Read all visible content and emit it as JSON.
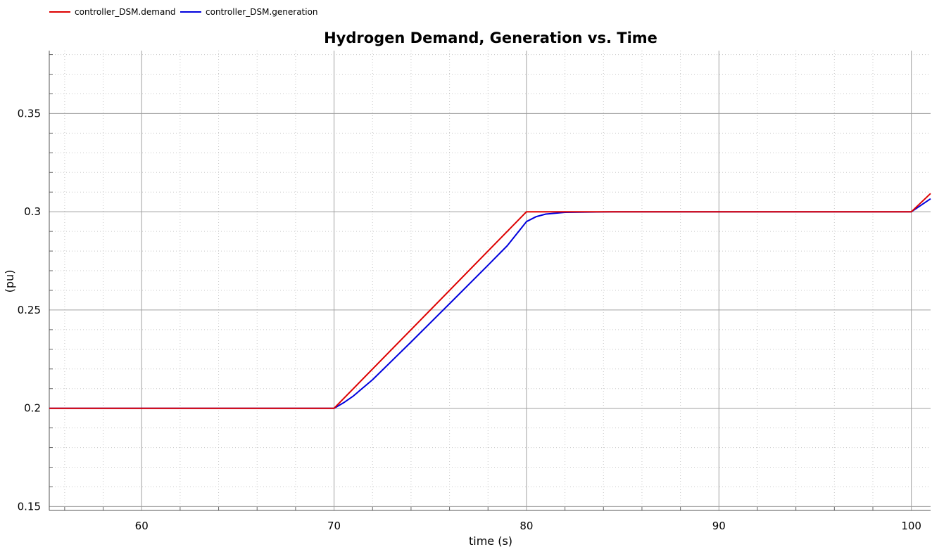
{
  "chart_data": {
    "type": "line",
    "title": "Hydrogen Demand, Generation vs. Time",
    "xlabel": "time (s)",
    "ylabel": "(pu)",
    "xlim": [
      55.2,
      101
    ],
    "ylim": [
      0.148,
      0.382
    ],
    "x_ticks": [
      60,
      70,
      80,
      90,
      100
    ],
    "x_tick_labels": [
      "60",
      "70",
      "80",
      "90",
      "100"
    ],
    "y_ticks": [
      0.15,
      0.2,
      0.25,
      0.3,
      0.35
    ],
    "y_tick_labels": [
      "0.15",
      "0.2",
      "0.25",
      "0.3",
      "0.35"
    ],
    "grid": true,
    "legend_position": "top-left",
    "series": [
      {
        "name": "controller_DSM.demand",
        "color": "#dd0000",
        "x": [
          55.2,
          70,
          80,
          100,
          101
        ],
        "y": [
          0.2,
          0.2,
          0.3,
          0.3,
          0.3093
        ]
      },
      {
        "name": "controller_DSM.generation",
        "color": "#0000dd",
        "x": [
          55.2,
          70,
          70.5,
          71,
          72,
          74,
          76,
          78,
          79,
          80,
          80.5,
          81,
          82,
          84.5,
          100,
          101
        ],
        "y": [
          0.2,
          0.2,
          0.2028,
          0.2062,
          0.2145,
          0.2337,
          0.2532,
          0.2728,
          0.2827,
          0.295,
          0.2975,
          0.2988,
          0.2997,
          0.3,
          0.3,
          0.3066
        ]
      }
    ]
  }
}
